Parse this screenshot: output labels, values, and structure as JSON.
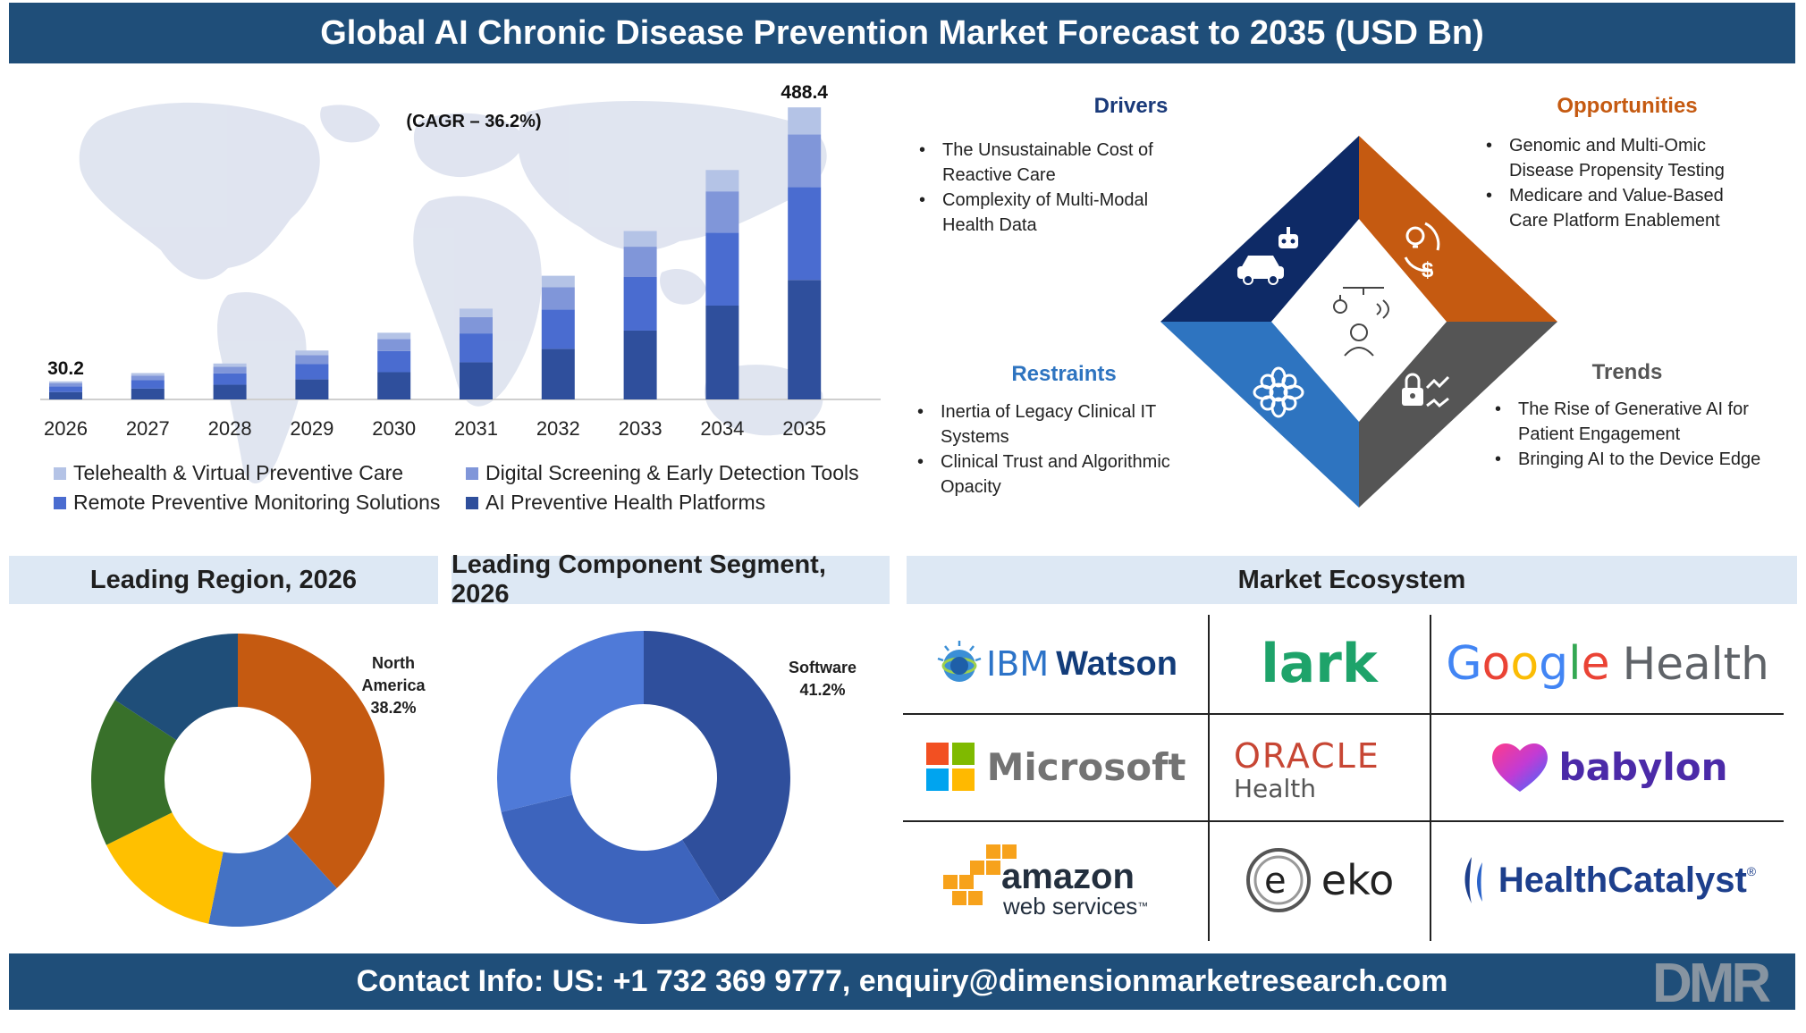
{
  "title": "Global AI Chronic Disease Prevention Market Forecast to 2035 (USD Bn)",
  "footer": "Contact Info: US: +1 732 369 9777, enquiry@dimensionmarketresearch.com",
  "brand_logo": "DMR",
  "colors": {
    "header": "#1f4e79",
    "section_header_bg": "#dde8f4",
    "series": [
      "#b4c3e6",
      "#8096d9",
      "#4a6cd0",
      "#2f4f9c"
    ],
    "drivers": "#1a3a7a",
    "opportunities": "#c55a11",
    "restraints": "#2e74c0",
    "trends": "#555555"
  },
  "chart_data": [
    {
      "type": "bar",
      "stacked": true,
      "categories": [
        "2026",
        "2027",
        "2028",
        "2029",
        "2030",
        "2031",
        "2032",
        "2033",
        "2034",
        "2035"
      ],
      "totals": [
        30.2,
        44.1,
        60.1,
        81.8,
        111.5,
        151.8,
        206.8,
        281.6,
        383.6,
        488.4
      ],
      "series": [
        {
          "name": "Telehealth & Virtual Preventive Care",
          "values": [
            2.8,
            4.1,
            5.6,
            7.6,
            10.4,
            14.1,
            19.2,
            26.2,
            35.7,
            45.4
          ]
        },
        {
          "name": "Digital Screening & Early Detection Tools",
          "values": [
            5.4,
            7.9,
            10.8,
            14.7,
            20.1,
            27.3,
            37.2,
            50.7,
            69.0,
            87.9
          ]
        },
        {
          "name": "Remote Preventive Monitoring Solutions",
          "values": [
            9.6,
            14.0,
            19.1,
            26.0,
            35.4,
            48.3,
            65.8,
            89.6,
            122.0,
            155.3
          ]
        },
        {
          "name": "AI Preventive Health Platforms",
          "values": [
            12.4,
            18.1,
            24.6,
            33.5,
            45.6,
            62.1,
            84.6,
            115.1,
            156.9,
            199.8
          ]
        }
      ],
      "labels": {
        "first": "30.2",
        "last": "488.4",
        "cagr": "(CAGR – 36.2%)"
      },
      "legend_position": "bottom"
    },
    {
      "type": "pie",
      "donut": true,
      "title": "Leading Region, 2026",
      "values": [
        38.2,
        15.0,
        14.5,
        16.5,
        15.8
      ],
      "colors": [
        "#c55a11",
        "#4472c4",
        "#ffc000",
        "#38702a",
        "#1f4e79"
      ],
      "label": {
        "name_line1": "North",
        "name_line2": "America",
        "value": "38.2%"
      }
    },
    {
      "type": "pie",
      "donut": true,
      "title": "Leading Component Segment, 2026",
      "values": [
        41.2,
        30.0,
        28.8
      ],
      "colors": [
        "#2f4f9c",
        "#3d64bd",
        "#4f7ad8"
      ],
      "label": {
        "name_line1": "Software",
        "value": "41.2%"
      }
    }
  ],
  "quadrants": {
    "drivers": {
      "title": "Drivers",
      "items": [
        "The Unsustainable Cost of Reactive Care",
        "Complexity of Multi-Modal Health Data"
      ],
      "icon": "robot-car-icon"
    },
    "opportunities": {
      "title": "Opportunities",
      "items": [
        "Genomic and Multi-Omic Disease Propensity Testing",
        "Medicare and Value-Based Care Platform Enablement"
      ],
      "icon": "idea-money-cycle-icon"
    },
    "restraints": {
      "title": "Restraints",
      "items": [
        "Inertia of Legacy Clinical IT Systems",
        "Clinical Trust and Algorithmic Opacity"
      ],
      "icon": "gear-flower-icon"
    },
    "trends": {
      "title": "Trends",
      "items": [
        "The Rise of Generative AI for Patient Engagement",
        "Bringing AI to the Device Edge"
      ],
      "icon": "lock-trend-icon"
    },
    "center_icon": "robot-arm-person-icon"
  },
  "sections": {
    "region": "Leading Region, 2026",
    "component": "Leading Component Segment, 2026",
    "ecosystem": "Market Ecosystem"
  },
  "ecosystem": {
    "ibm": {
      "brand": "IBM",
      "product": "Watson"
    },
    "lark": "lark",
    "google": {
      "g1": "G",
      "g2": "o",
      "g3": "o",
      "g4": "g",
      "g5": "l",
      "g6": "e",
      "rest": "Health"
    },
    "microsoft": "Microsoft",
    "oracle": {
      "brand": "ORACLE",
      "sub": "Health"
    },
    "babylon": "babylon",
    "aws": {
      "brand": "amazon",
      "sub": "web services",
      "tm": "™"
    },
    "eko": "eko",
    "healthcatalyst": {
      "brand": "HealthCatalyst",
      "reg": "®"
    }
  }
}
